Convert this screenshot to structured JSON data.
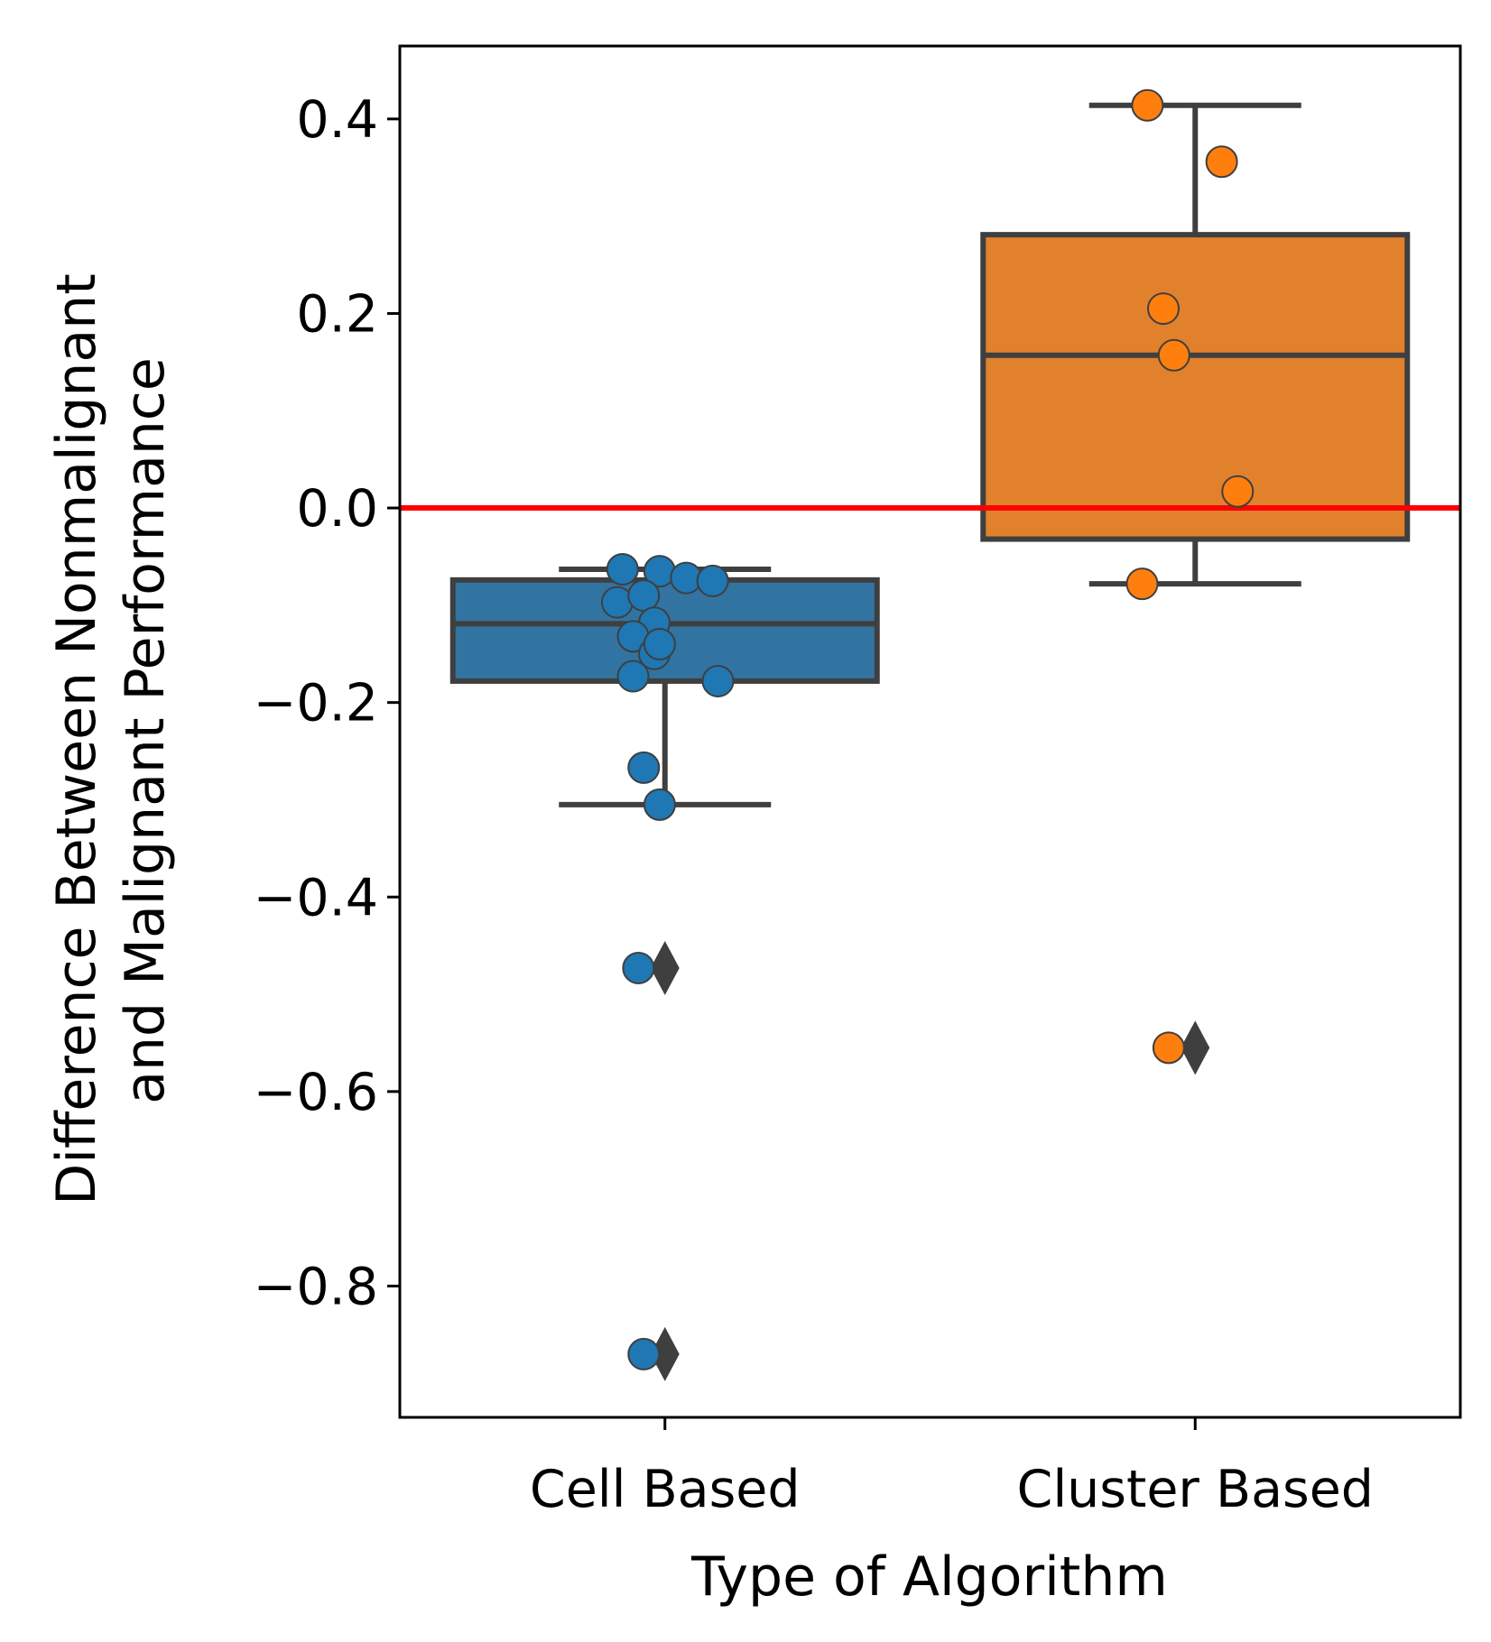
{
  "chart_data": {
    "type": "box",
    "title": "",
    "xlabel": "Type of Algorithm",
    "ylabel_lines": [
      "Difference Between Nonmalignant",
      "and Malignant Performance"
    ],
    "ylim": [
      -0.935,
      0.475
    ],
    "yticks": [
      0.4,
      0.2,
      0.0,
      -0.2,
      -0.4,
      -0.6,
      -0.8
    ],
    "ytick_labels": [
      "0.4",
      "0.2",
      "0.0",
      "−0.2",
      "−0.4",
      "−0.6",
      "−0.8"
    ],
    "categories": [
      "Cell Based",
      "Cluster Based"
    ],
    "reference_line": {
      "y": 0.0,
      "color": "#ff0000"
    },
    "colors": {
      "cell": "#3274a1",
      "cluster": "#e1812c",
      "cell_points": "#1f77b4",
      "cluster_points": "#ff7f0e",
      "box_edge": "#3f3f3f"
    },
    "boxes": [
      {
        "name": "Cell Based",
        "q1": -0.178,
        "median": -0.119,
        "q3": -0.074,
        "whisker_low": -0.305,
        "whisker_high": -0.063,
        "outliers": [
          -0.473,
          -0.87
        ],
        "points": [
          {
            "jitter": -0.08,
            "y": -0.063
          },
          {
            "jitter": -0.01,
            "y": -0.065
          },
          {
            "jitter": 0.04,
            "y": -0.072
          },
          {
            "jitter": 0.09,
            "y": -0.075
          },
          {
            "jitter": -0.09,
            "y": -0.097
          },
          {
            "jitter": -0.04,
            "y": -0.09
          },
          {
            "jitter": -0.02,
            "y": -0.118
          },
          {
            "jitter": -0.06,
            "y": -0.132
          },
          {
            "jitter": -0.02,
            "y": -0.15
          },
          {
            "jitter": -0.01,
            "y": -0.14
          },
          {
            "jitter": -0.06,
            "y": -0.173
          },
          {
            "jitter": 0.1,
            "y": -0.178
          },
          {
            "jitter": -0.04,
            "y": -0.267
          },
          {
            "jitter": -0.01,
            "y": -0.305
          },
          {
            "jitter": -0.05,
            "y": -0.473
          },
          {
            "jitter": -0.04,
            "y": -0.87
          }
        ]
      },
      {
        "name": "Cluster Based",
        "q1": -0.032,
        "median": 0.157,
        "q3": 0.281,
        "whisker_low": -0.078,
        "whisker_high": 0.414,
        "outliers": [
          -0.555
        ],
        "points": [
          {
            "jitter": -0.09,
            "y": 0.414
          },
          {
            "jitter": 0.05,
            "y": 0.356
          },
          {
            "jitter": -0.06,
            "y": 0.205
          },
          {
            "jitter": -0.04,
            "y": 0.157
          },
          {
            "jitter": 0.08,
            "y": 0.017
          },
          {
            "jitter": -0.1,
            "y": -0.078
          },
          {
            "jitter": -0.05,
            "y": -0.555
          }
        ]
      }
    ]
  }
}
